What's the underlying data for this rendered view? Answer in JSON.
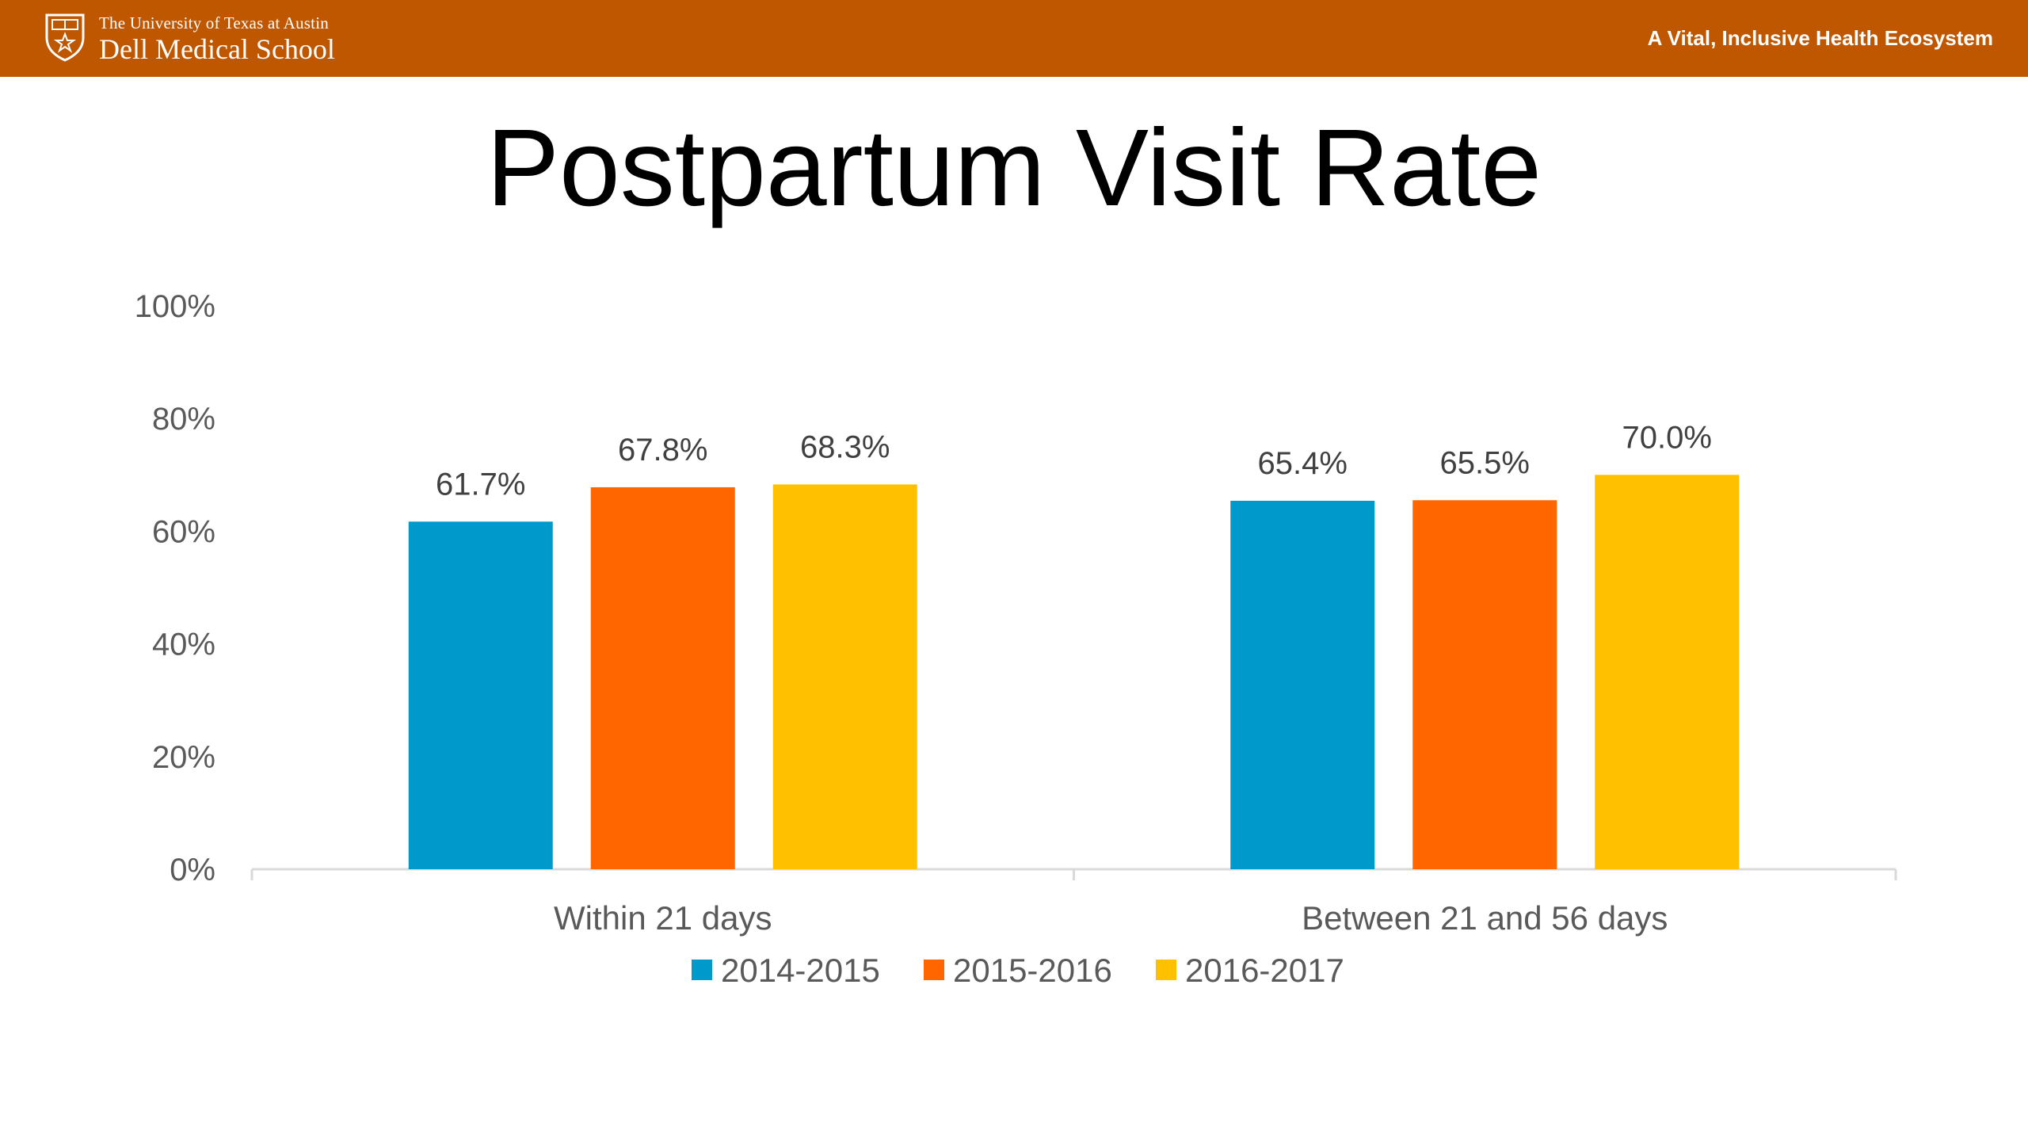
{
  "header": {
    "institution": "The University of Texas at Austin",
    "school": "Dell Medical School",
    "tagline": "A Vital, Inclusive Health Ecosystem",
    "background_color": "#bf5700",
    "logo_icon": "ut-shield-icon"
  },
  "slide": {
    "title": "Postpartum Visit Rate"
  },
  "chart_data": {
    "type": "bar",
    "title": "Postpartum Visit Rate",
    "xlabel": "",
    "ylabel": "",
    "categories": [
      "Within 21 days",
      "Between 21 and 56 days"
    ],
    "series": [
      {
        "name": "2014-2015",
        "color": "#0099cc",
        "values": [
          61.7,
          65.4
        ],
        "labels": [
          "61.7%",
          "65.4%"
        ]
      },
      {
        "name": "2015-2016",
        "color": "#ff6600",
        "values": [
          67.8,
          65.5
        ],
        "labels": [
          "67.8%",
          "65.5%"
        ]
      },
      {
        "name": "2016-2017",
        "color": "#ffc000",
        "values": [
          68.3,
          70.0
        ],
        "labels": [
          "68.3%",
          "70.0%"
        ]
      }
    ],
    "ylim": [
      0,
      100
    ],
    "yticks": [
      "0%",
      "20%",
      "40%",
      "60%",
      "80%",
      "100%"
    ],
    "ytick_values": [
      0,
      20,
      40,
      60,
      80,
      100
    ],
    "grid": false,
    "legend_position": "bottom"
  }
}
